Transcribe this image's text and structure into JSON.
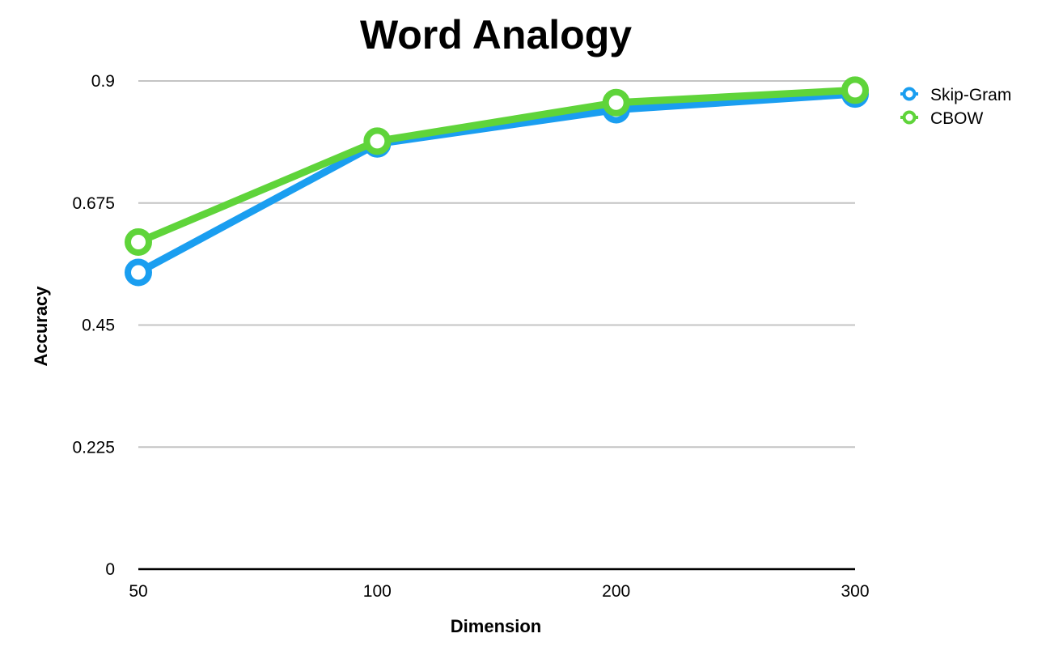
{
  "chart_data": {
    "type": "line",
    "title": "Word Analogy",
    "xlabel": "Dimension",
    "ylabel": "Accuracy",
    "categories": [
      "50",
      "100",
      "200",
      "300"
    ],
    "yticks": [
      "0",
      "0.225",
      "0.45",
      "0.675",
      "0.9"
    ],
    "ylim": [
      0,
      0.9
    ],
    "grid": true,
    "legend_position": "top-right",
    "series": [
      {
        "name": "Skip-Gram",
        "color": "#1a9ef0",
        "values": [
          0.547,
          0.784,
          0.847,
          0.876
        ]
      },
      {
        "name": "CBOW",
        "color": "#5fd43a",
        "values": [
          0.603,
          0.789,
          0.86,
          0.883
        ]
      }
    ]
  }
}
